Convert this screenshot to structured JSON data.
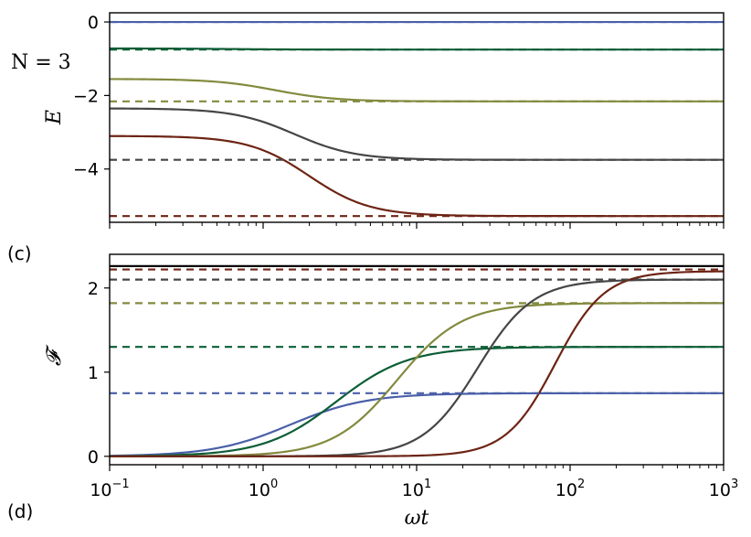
{
  "figure": {
    "n_label": "N = 3",
    "panel_c_tag": "(c)",
    "panel_d_tag": "(d)"
  },
  "colors": [
    "#4a5fa8",
    "#0d5e36",
    "#838a3e",
    "#454545",
    "#6d2414"
  ],
  "chart_data": [
    {
      "type": "line",
      "xscale": "log",
      "xlim": [
        0.1,
        1000
      ],
      "ylim": [
        -5.45,
        0.25
      ],
      "ylabel": "E",
      "yticks": [
        0,
        -2,
        -4
      ],
      "ytick_labels": [
        "0",
        "−2",
        "−4"
      ],
      "xticks_shown": false,
      "series": [
        {
          "style": "solid",
          "color": "#4a5fa8",
          "y_start": 0.0,
          "y_end": 0.0,
          "t_mid": 1.0
        },
        {
          "style": "solid",
          "color": "#0d5e36",
          "y_start": -0.72,
          "y_end": -0.75,
          "t_mid": 0.6
        },
        {
          "style": "solid",
          "color": "#838a3e",
          "y_start": -1.55,
          "y_end": -2.16,
          "t_mid": 1.2
        },
        {
          "style": "solid",
          "color": "#454545",
          "y_start": -2.35,
          "y_end": -3.75,
          "t_mid": 1.6
        },
        {
          "style": "solid",
          "color": "#6d2414",
          "y_start": -3.1,
          "y_end": -5.28,
          "t_mid": 2.0
        },
        {
          "style": "dashed",
          "color": "#4a5fa8",
          "y": 0.0
        },
        {
          "style": "dashed",
          "color": "#0d5e36",
          "y": -0.75
        },
        {
          "style": "dashed",
          "color": "#838a3e",
          "y": -2.16
        },
        {
          "style": "dashed",
          "color": "#454545",
          "y": -3.75
        },
        {
          "style": "dashed",
          "color": "#6d2414",
          "y": -5.28
        }
      ]
    },
    {
      "type": "line",
      "xscale": "log",
      "xlim": [
        0.1,
        1000
      ],
      "ylim": [
        -0.1,
        2.4
      ],
      "ylabel": "𝓕",
      "xlabel": "ωt",
      "yticks": [
        0,
        1,
        2
      ],
      "ytick_labels": [
        "0",
        "1",
        "2"
      ],
      "xticks": [
        0.1,
        1,
        10,
        100,
        1000
      ],
      "xtick_labels": [
        [
          "10",
          "−1"
        ],
        [
          "10",
          "0"
        ],
        [
          "10",
          "1"
        ],
        [
          "10",
          "2"
        ],
        [
          "10",
          "3"
        ]
      ],
      "series": [
        {
          "style": "solid",
          "color": "#4a5fa8",
          "y_end": 0.75,
          "t_mid": 1.5,
          "width": 0.5
        },
        {
          "style": "solid",
          "color": "#0d5e36",
          "y_end": 1.3,
          "t_mid": 3.0,
          "width": 0.47
        },
        {
          "style": "solid",
          "color": "#838a3e",
          "y_end": 1.82,
          "t_mid": 7.5,
          "width": 0.42
        },
        {
          "style": "solid",
          "color": "#454545",
          "y_end": 2.1,
          "t_mid": 25,
          "width": 0.36
        },
        {
          "style": "solid",
          "color": "#6d2414",
          "y_end": 2.2,
          "t_mid": 80,
          "width": 0.32
        },
        {
          "style": "dashed",
          "color": "#4a5fa8",
          "y": 0.75
        },
        {
          "style": "dashed",
          "color": "#0d5e36",
          "y": 1.3
        },
        {
          "style": "dashed",
          "color": "#838a3e",
          "y": 1.82
        },
        {
          "style": "dashed",
          "color": "#454545",
          "y": 2.1
        },
        {
          "style": "dashed",
          "color": "#6d2414",
          "y": 2.22
        },
        {
          "style": "solid",
          "color": "#000000",
          "y": 2.26
        }
      ]
    }
  ]
}
